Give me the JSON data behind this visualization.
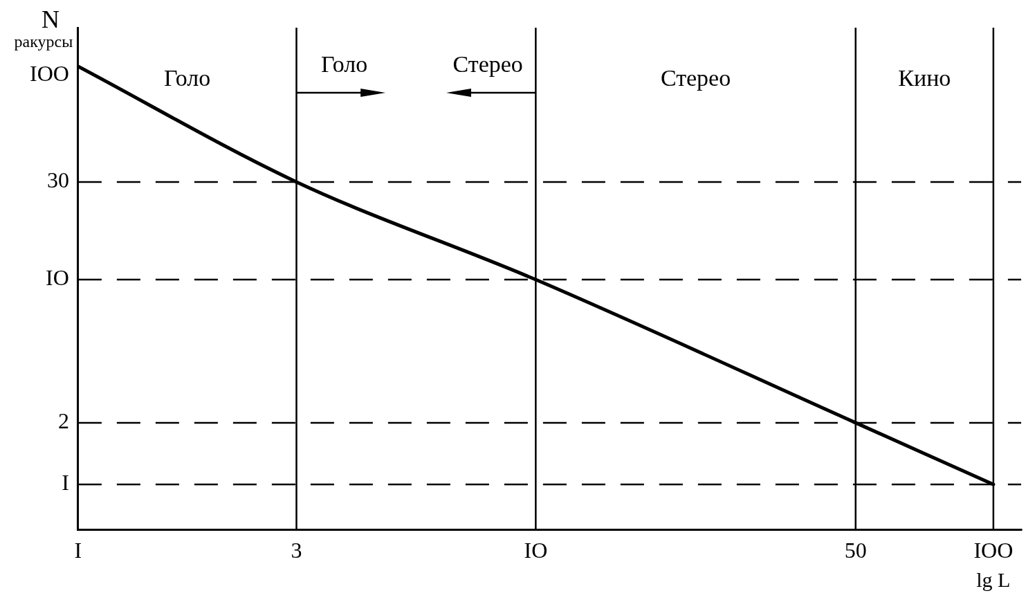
{
  "chart_data": {
    "type": "line",
    "xlabel": "lg L",
    "ylabel": "N ракурсы",
    "x": [
      1,
      3,
      10,
      50,
      100
    ],
    "series": [
      {
        "color": "#000000",
        "values": [
          110,
          30,
          10,
          2,
          1
        ]
      }
    ],
    "log": "xy",
    "xlim": [
      1,
      115
    ],
    "ylim": [
      0.6,
      170
    ],
    "xticks": [
      {
        "value": 1,
        "label": "I"
      },
      3,
      {
        "value": 10,
        "label": "IO"
      },
      50,
      {
        "value": 100,
        "label": "IOO"
      }
    ],
    "yticks": [
      {
        "value": 1,
        "label": "I"
      },
      2,
      {
        "value": 10,
        "label": "IO"
      },
      30,
      {
        "value": 100,
        "label": "IOO"
      }
    ],
    "ref_lines": [
      {
        "axis": "y",
        "value": 30,
        "line_style": "dashed"
      },
      {
        "axis": "y",
        "value": 10,
        "line_style": "dashed"
      },
      {
        "axis": "y",
        "value": 2,
        "line_style": "dashed"
      },
      {
        "axis": "y",
        "value": 1,
        "line_style": "dashed"
      },
      {
        "axis": "x",
        "value": 3,
        "line_style": "solid"
      },
      {
        "axis": "x",
        "value": 10,
        "line_style": "solid"
      },
      {
        "axis": "x",
        "value": 50,
        "line_style": "solid"
      },
      {
        "axis": "x",
        "value": 100,
        "line_style": "solid"
      }
    ],
    "annotations": [
      "Голо",
      "Голо",
      "Стерео",
      "Стерео",
      "Кино"
    ],
    "grid": false,
    "legend": false,
    "marker": "none",
    "line_style": "solid"
  }
}
